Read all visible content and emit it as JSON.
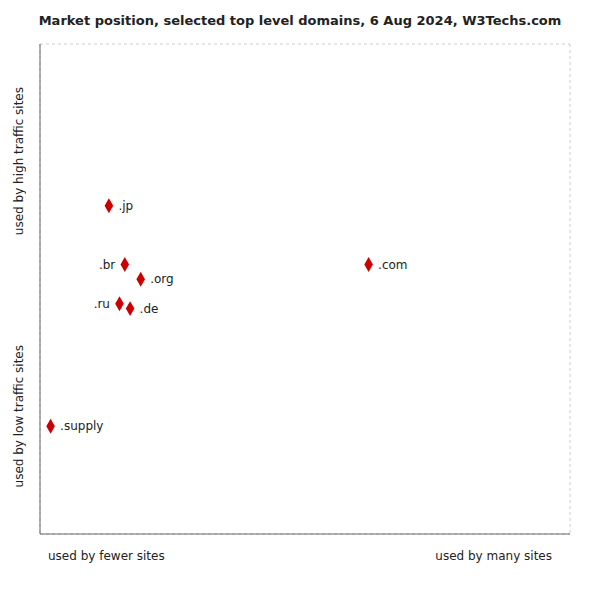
{
  "chart_data": {
    "type": "scatter",
    "title": "Market position, selected top level domains, 6 Aug 2024, W3Techs.com",
    "xlabel": [
      "used by fewer sites",
      "used by many sites"
    ],
    "ylabel": [
      "used by high traffic sites",
      "used by low traffic sites"
    ],
    "points": [
      {
        "label": ".jp",
        "x": 13,
        "y": 67
      },
      {
        "label": ".br",
        "x": 16,
        "y": 55
      },
      {
        "label": ".org",
        "x": 19,
        "y": 52
      },
      {
        "label": ".ru",
        "x": 15,
        "y": 47
      },
      {
        "label": ".de",
        "x": 17,
        "y": 46
      },
      {
        "label": ".com",
        "x": 62,
        "y": 55
      },
      {
        "label": ".supply",
        "x": 2,
        "y": 22
      }
    ],
    "color": "#cc0000",
    "marker": "diamond",
    "xlim": [
      0,
      100
    ],
    "ylim": [
      0,
      100
    ],
    "xticks": [
      0,
      20,
      40,
      60,
      80,
      100
    ],
    "yticks": [
      0,
      20,
      40,
      60,
      80,
      100
    ],
    "grid": true,
    "tick_labels": false
  }
}
